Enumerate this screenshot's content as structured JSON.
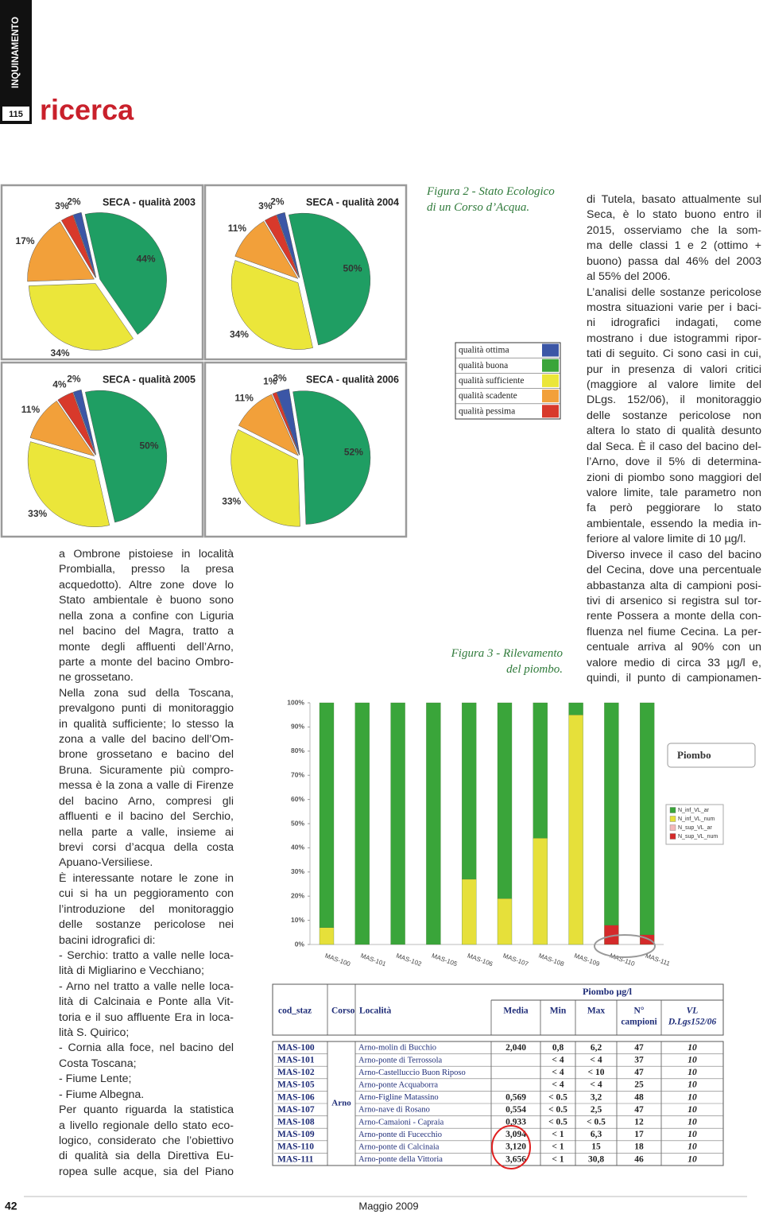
{
  "header": {
    "section": "INQUINAMENTO",
    "page_badge": "115",
    "title": "ricerca"
  },
  "chart_data": [
    {
      "type": "pie",
      "title": "SECA - qualità 2003",
      "values": [
        2,
        44,
        34,
        17,
        3
      ],
      "value_labels": [
        "2%",
        "44%",
        "34%",
        "17%",
        "3%"
      ],
      "colors": [
        "#3b56a6",
        "#1f9e63",
        "#ebe63a",
        "#f2a03a",
        "#d8392b"
      ]
    },
    {
      "type": "pie",
      "title": "SECA - qualità 2004",
      "values": [
        2,
        50,
        34,
        11,
        3
      ],
      "value_labels": [
        "2%",
        "50%",
        "34%",
        "11%",
        "3%"
      ],
      "colors": [
        "#3b56a6",
        "#1f9e63",
        "#ebe63a",
        "#f2a03a",
        "#d8392b"
      ]
    },
    {
      "type": "pie",
      "title": "SECA - qualità 2005",
      "values": [
        2,
        50,
        33,
        11,
        4
      ],
      "value_labels": [
        "2%",
        "50%",
        "33%",
        "11%",
        "4%"
      ],
      "colors": [
        "#3b56a6",
        "#1f9e63",
        "#ebe63a",
        "#f2a03a",
        "#d8392b"
      ]
    },
    {
      "type": "pie",
      "title": "SECA - qualità 2006",
      "values": [
        3,
        52,
        33,
        11,
        1
      ],
      "value_labels": [
        "3%",
        "52%",
        "33%",
        "11%",
        "1%"
      ],
      "colors": [
        "#3b56a6",
        "#1f9e63",
        "#ebe63a",
        "#f2a03a",
        "#d8392b"
      ]
    },
    {
      "type": "bar",
      "title": "Piombo",
      "categories": [
        "MAS-100",
        "MAS-101",
        "MAS-102",
        "MAS-105",
        "MAS-106",
        "MAS-107",
        "MAS-108",
        "MAS-109",
        "MAS-110",
        "MAS-111"
      ],
      "series": [
        {
          "name": "N_inf_VL_ar",
          "color": "#3aa53a",
          "values": [
            93,
            100,
            100,
            100,
            73,
            81,
            56,
            5,
            92,
            96
          ]
        },
        {
          "name": "N_inf_VL_num",
          "color": "#e6e03a",
          "values": [
            7,
            0,
            0,
            0,
            27,
            19,
            44,
            95,
            0,
            0
          ]
        },
        {
          "name": "N_sup_VL_ar",
          "color": "#f4b8b8",
          "values": [
            0,
            0,
            0,
            0,
            0,
            0,
            0,
            0,
            0,
            0
          ]
        },
        {
          "name": "N_sup_VL_num",
          "color": "#d42a2a",
          "values": [
            0,
            0,
            0,
            0,
            0,
            0,
            0,
            0,
            8,
            4
          ]
        }
      ],
      "ylim": [
        0,
        100
      ],
      "yticks": [
        {
          "value": 0,
          "label": "0%"
        },
        {
          "value": 10,
          "label": "10%"
        },
        {
          "value": 20,
          "label": "20%"
        },
        {
          "value": 30,
          "label": "30%"
        },
        {
          "value": 40,
          "label": "40%"
        },
        {
          "value": 50,
          "label": "50%"
        },
        {
          "value": 60,
          "label": "60%"
        },
        {
          "value": 70,
          "label": "70%"
        },
        {
          "value": 80,
          "label": "80%"
        },
        {
          "value": 90,
          "label": "90%"
        },
        {
          "value": 100,
          "label": "100%"
        }
      ]
    }
  ],
  "quality_legend": {
    "labels": [
      "qualità ottima",
      "qualità buona",
      "qualità sufficiente",
      "qualità scadente",
      "qualità pessima"
    ],
    "colors": [
      "#3b56a6",
      "#3aa53a",
      "#ebe63a",
      "#f2a03a",
      "#d8392b"
    ]
  },
  "captions": {
    "figure_2": [
      "Figura 2 - Stato Ecologico",
      "di un Corso d’Acqua."
    ],
    "figure_3": [
      "Figura 3 - Rilevamento",
      "del piombo."
    ]
  },
  "left_column": [
    [
      "a Ombrone pistoiese in località",
      "Prombialla, presso la presa",
      "acquedotto). Altre zone dove lo",
      "Stato ambientale è buono sono",
      "nella zona a confine con Liguria",
      "nel bacino del Magra, tratto a",
      "monte degli affluenti dell’Arno,",
      "parte a monte del bacino Ombro-",
      "ne grossetano."
    ],
    [
      "Nella zona sud della Toscana,",
      "prevalgono punti di monitoraggio",
      "in qualità sufficiente; lo stesso la",
      "zona a valle del bacino dell’Om-",
      "brone grossetano e bacino del",
      "Bruna. Sicuramente più compro-",
      "messa è la zona a valle di Firenze",
      "del bacino Arno, compresi gli",
      "affluenti e il bacino del Serchio,",
      "nella parte a valle, insieme ai",
      "brevi corsi d’acqua della costa",
      "Apuano-Versiliese."
    ],
    [
      "È interessante notare le zone in",
      "cui si ha un peggioramento con",
      "l’introduzione del monitoraggio",
      "delle sostanze pericolose nei",
      "bacini idrografici di:"
    ],
    [
      "- Serchio: tratto a valle nelle loca-",
      "lità di Migliarino e Vecchiano;"
    ],
    [
      "- Arno nel tratto a valle nelle loca-",
      "lità di Calcinaia e Ponte alla Vit-",
      "toria e il suo affluente Era in loca-",
      "lità S. Quirico;"
    ],
    [
      "- Cornia alla foce, nel bacino del",
      "Costa Toscana;"
    ],
    [
      "- Fiume Lente;"
    ],
    [
      "- Fiume Albegna."
    ],
    [
      "Per quanto riguarda la statistica",
      "a livello regionale dello stato eco-",
      "logico, considerato che l’obiettivo",
      "di qualità sia della Direttiva Eu-",
      "ropea sulle acque, sia del Piano"
    ]
  ],
  "right_column": [
    [
      "di Tutela, basato attualmente sul",
      "Seca, è lo stato buono entro il",
      "2015, osserviamo che la som-",
      "ma delle classi 1 e 2 (ottimo +",
      "buono) passa dal 46% del 2003",
      "al 55% del 2006."
    ],
    [
      "L’analisi delle sostanze pericolose",
      "mostra situazioni varie per i baci-",
      "ni idrografici indagati, come",
      "mostrano i due istogrammi ripor-",
      "tati di seguito. Ci sono casi in cui,",
      "pur in presenza di valori critici",
      "(maggiore al valore limite del",
      "DLgs. 152/06), il monitoraggio",
      "delle sostanze pericolose non",
      "altera lo stato di qualità desunto",
      "dal Seca. È il caso del bacino del-",
      "l’Arno, dove il 5% di determina-",
      "zioni di piombo sono maggiori del",
      "valore limite, tale parametro non",
      "fa però peggiorare lo stato",
      "ambientale, essendo la media in-",
      "feriore al valore limite di 10 µg/l."
    ],
    [
      "Diverso invece il caso del bacino",
      "del Cecina, dove una percentuale",
      "abbastanza alta di campioni posi-",
      "tivi di arsenico si registra sul tor-",
      "rente Possera a monte della con-",
      "fluenza nel fiume Cecina. La per-",
      "centuale arriva al 90% con un",
      "valore medio di circa 33 µg/l e,",
      "quindi, il punto di campionamen-"
    ]
  ],
  "table": {
    "group_header": "Piombo µg/l",
    "columns": [
      "cod_staz",
      "Corso",
      "Località",
      "Media",
      "Min",
      "Max",
      [
        "N°",
        "campioni"
      ],
      [
        "VL",
        "D.Lgs152/06"
      ]
    ],
    "corso": "Arno",
    "rows": [
      [
        "MAS-100",
        "Arno-molin di Bucchio",
        "2,040",
        "0,8",
        "6,2",
        "47",
        "10"
      ],
      [
        "MAS-101",
        "Arno-ponte di Terrossola",
        null,
        "< 4",
        "< 4",
        "37",
        "10"
      ],
      [
        "MAS-102",
        "Arno-Castelluccio Buon Riposo",
        null,
        "< 4",
        "< 10",
        "47",
        "10"
      ],
      [
        "MAS-105",
        "Arno-ponte Acquaborra",
        null,
        "< 4",
        "< 4",
        "25",
        "10"
      ],
      [
        "MAS-106",
        "Arno-Figline Matassino",
        "0,569",
        "< 0.5",
        "3,2",
        "48",
        "10"
      ],
      [
        "MAS-107",
        "Arno-nave di Rosano",
        "0,554",
        "< 0.5",
        "2,5",
        "47",
        "10"
      ],
      [
        "MAS-108",
        "Arno-Camaioni - Capraia",
        "0,933",
        "< 0.5",
        "< 0.5",
        "12",
        "10"
      ],
      [
        "MAS-109",
        "Arno-ponte di Fucecchio",
        "3,094",
        "< 1",
        "6,3",
        "17",
        "10"
      ],
      [
        "MAS-110",
        "Arno-ponte di Calcinaia",
        "3,120",
        "< 1",
        "15",
        "18",
        "10"
      ],
      [
        "MAS-111",
        "Arno-ponte della Vittoria",
        "3,656",
        "< 1",
        "30,8",
        "46",
        "10"
      ]
    ]
  },
  "footer": {
    "page_number": "42",
    "issue": "Maggio 2009"
  }
}
